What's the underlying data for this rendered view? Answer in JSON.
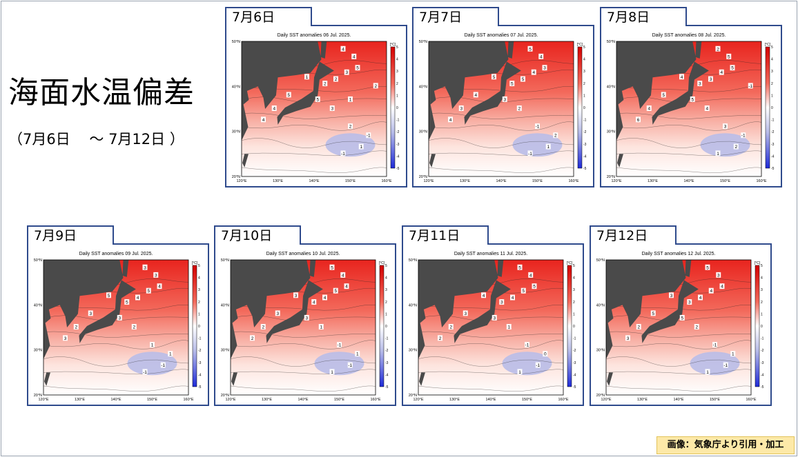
{
  "title": "海面水温偏差",
  "date_range": "（7月6日　 ～ 7月12日 ）",
  "credit": "画像：気象庁より引用・加工",
  "map_common": {
    "lat_labels": [
      "50°N",
      "40°N",
      "30°N",
      "20°N"
    ],
    "lon_labels": [
      "120°E",
      "130°E",
      "140°E",
      "150°E",
      "160°E"
    ],
    "colorbar_unit": "[°C]",
    "colorbar_ticks": [
      "5",
      "4",
      "3",
      "2",
      "1",
      "0",
      "-1",
      "-2",
      "-3",
      "-4",
      "-5"
    ],
    "colors": {
      "land": "#4a4a4a",
      "strong_warm": "#e8241e",
      "warm": "#f36a5c",
      "mild_warm": "#f8b3a8",
      "neutral": "#ffffff",
      "cool": "#b9bde8",
      "cold": "#1e2ad8"
    }
  },
  "panels": [
    {
      "tab": "7月6日",
      "chart_title": "Daily SST anomalies 06 Jul. 2025.",
      "labels": [
        "4",
        "4",
        "5",
        "3",
        "2",
        "2",
        "1",
        "5",
        "5",
        "4",
        "4",
        "3",
        "2",
        "1",
        "-1",
        "-1",
        "2",
        "1"
      ]
    },
    {
      "tab": "7月7日",
      "chart_title": "Daily SST anomalies 07 Jul. 2025.",
      "labels": [
        "5",
        "4",
        "3",
        "4",
        "5",
        "5",
        "5",
        "4",
        "3",
        "4",
        "3",
        "2",
        "-1",
        "1",
        "-1",
        "2"
      ]
    },
    {
      "tab": "7月8日",
      "chart_title": "Daily SST anomalies 08 Jul. 2025.",
      "labels": [
        "2",
        "5",
        "5",
        "4",
        "3",
        "3",
        "4",
        "5",
        "5",
        "6",
        "4",
        "4",
        "3",
        "2",
        "1",
        "-1",
        "-1"
      ]
    },
    {
      "tab": "7月9日",
      "chart_title": "Daily SST anomalies 09 Jul. 2025.",
      "labels": [
        "3",
        "3",
        "4",
        "5",
        "4",
        "5",
        "5",
        "3",
        "3",
        "3",
        "2",
        "2",
        "1",
        "-1",
        "-1",
        "1"
      ]
    },
    {
      "tab": "7月10日",
      "chart_title": "Daily SST anomalies 10 Jul. 2025.",
      "labels": [
        "5",
        "4",
        "4",
        "5",
        "4",
        "4",
        "3",
        "3",
        "3",
        "2",
        "2",
        "1",
        "-1",
        "-1",
        "1",
        "1"
      ]
    },
    {
      "tab": "7月11日",
      "chart_title": "Daily SST anomalies 11 Jul. 2025.",
      "labels": [
        "5",
        "4",
        "5",
        "5",
        "4",
        "3",
        "4",
        "3",
        "3",
        "2",
        "2",
        "1",
        "-1",
        "-1",
        "1",
        "0"
      ]
    },
    {
      "tab": "7月12日",
      "chart_title": "Daily SST anomalies 12 Jul. 2025.",
      "labels": [
        "5",
        "3",
        "4",
        "4",
        "4",
        "3",
        "3",
        "5",
        "5",
        "3",
        "2",
        "2",
        "-1",
        "-1",
        "1",
        "1"
      ]
    }
  ]
}
